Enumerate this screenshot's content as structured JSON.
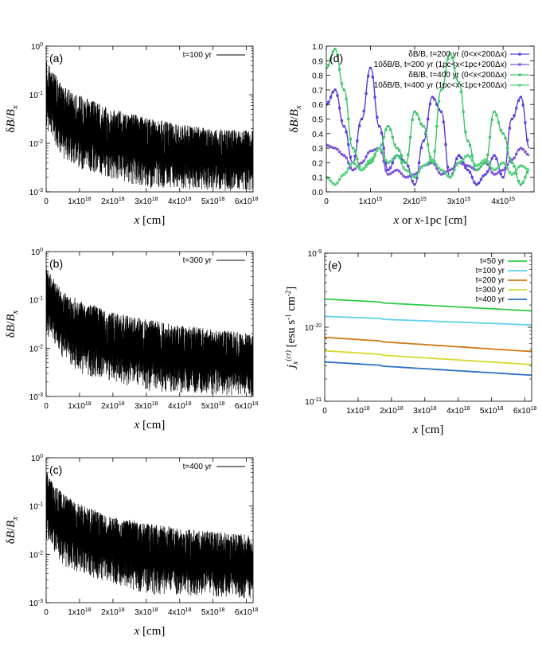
{
  "chart_data": [
    {
      "id": "a",
      "type": "line",
      "panel_label": "(a)",
      "legend": "t=100 yr",
      "ylabel": "δB/B_x",
      "xlabel": "x [cm]",
      "yscale": "log",
      "ylim": [
        0.001,
        1
      ],
      "xlim": [
        0,
        6.2e+18
      ],
      "yticks": [
        "10^-3",
        "10^-2",
        "10^-1",
        "10^0"
      ],
      "xticks": [
        "0",
        "1x10^18",
        "2x10^18",
        "3x10^18",
        "4x10^18",
        "5x10^18",
        "6x10^18"
      ],
      "upper_envelope": [
        [
          0,
          0.55
        ],
        [
          1e+17,
          0.4
        ],
        [
          5e+17,
          0.15
        ],
        [
          1e+18,
          0.1
        ],
        [
          2e+18,
          0.05
        ],
        [
          3e+18,
          0.035
        ],
        [
          4e+18,
          0.025
        ],
        [
          5e+18,
          0.02
        ],
        [
          6.2e+18,
          0.018
        ]
      ],
      "lower_envelope": [
        [
          0,
          0.02
        ],
        [
          5e+17,
          0.005
        ],
        [
          1e+18,
          0.003
        ],
        [
          2e+18,
          0.0018
        ],
        [
          3e+18,
          0.0012
        ],
        [
          6.2e+18,
          0.001
        ]
      ],
      "color": "#000000"
    },
    {
      "id": "b",
      "type": "line",
      "panel_label": "(b)",
      "legend": "t=300 yr",
      "ylabel": "δB/B_x",
      "xlabel": "x [cm]",
      "yscale": "log",
      "ylim": [
        0.001,
        1
      ],
      "xlim": [
        0,
        6.2e+18
      ],
      "yticks": [
        "10^-3",
        "10^-2",
        "10^-1",
        "10^0"
      ],
      "xticks": [
        "0",
        "1x10^18",
        "2x10^18",
        "3x10^18",
        "4x10^18",
        "5x10^18",
        "6x10^18"
      ],
      "upper_envelope": [
        [
          0,
          0.6
        ],
        [
          1e+17,
          0.4
        ],
        [
          5e+17,
          0.15
        ],
        [
          1e+18,
          0.1
        ],
        [
          2e+18,
          0.055
        ],
        [
          3e+18,
          0.04
        ],
        [
          4e+18,
          0.03
        ],
        [
          5e+18,
          0.025
        ],
        [
          6.2e+18,
          0.02
        ]
      ],
      "lower_envelope": [
        [
          0,
          0.02
        ],
        [
          5e+17,
          0.006
        ],
        [
          1e+18,
          0.003
        ],
        [
          2e+18,
          0.002
        ],
        [
          3e+18,
          0.0013
        ],
        [
          6.2e+18,
          0.001
        ]
      ],
      "color": "#000000"
    },
    {
      "id": "c",
      "type": "line",
      "panel_label": "(c)",
      "legend": "t=400 yr",
      "ylabel": "δB/B_x",
      "xlabel": "x [cm]",
      "yscale": "log",
      "ylim": [
        0.001,
        1
      ],
      "xlim": [
        0,
        6.2e+18
      ],
      "yticks": [
        "10^-3",
        "10^-2",
        "10^-1",
        "10^0"
      ],
      "xticks": [
        "0",
        "1x10^18",
        "2x10^18",
        "3x10^18",
        "4x10^18",
        "5x10^18",
        "6x10^18"
      ],
      "upper_envelope": [
        [
          0,
          0.55
        ],
        [
          1e+17,
          0.4
        ],
        [
          5e+17,
          0.18
        ],
        [
          1e+18,
          0.11
        ],
        [
          2e+18,
          0.06
        ],
        [
          3e+18,
          0.045
        ],
        [
          4e+18,
          0.035
        ],
        [
          5e+18,
          0.03
        ],
        [
          6.2e+18,
          0.025
        ]
      ],
      "lower_envelope": [
        [
          0,
          0.02
        ],
        [
          5e+17,
          0.006
        ],
        [
          1e+18,
          0.004
        ],
        [
          2e+18,
          0.0025
        ],
        [
          3e+18,
          0.0015
        ],
        [
          6.2e+18,
          0.0012
        ]
      ],
      "color": "#000000"
    },
    {
      "id": "d",
      "type": "line",
      "panel_label": "(d)",
      "ylabel": "δB/B_x",
      "xlabel": "x or x-1pc [cm]",
      "yscale": "linear",
      "ylim": [
        0,
        1.0
      ],
      "xlim": [
        0,
        4700000000000000.0
      ],
      "yticks": [
        "0.0",
        "0.1",
        "0.2",
        "0.3",
        "0.4",
        "0.5",
        "0.6",
        "0.7",
        "0.8",
        "0.9",
        "1.0"
      ],
      "xticks": [
        "0",
        "1x10^15",
        "2x10^15",
        "3x10^15",
        "4x10^15"
      ],
      "series": [
        {
          "name": "δB/B, t=200 yr (0<x<200Δx)",
          "color": "#5a3fd8",
          "marker": "square",
          "x": [
            0,
            0.2,
            0.4,
            0.6,
            0.8,
            1.0,
            1.2,
            1.4,
            1.6,
            1.8,
            2.0,
            2.2,
            2.4,
            2.6,
            2.8,
            3.0,
            3.2,
            3.4,
            3.6,
            3.8,
            4.0,
            4.2,
            4.4,
            4.6
          ],
          "y": [
            0.6,
            0.7,
            0.45,
            0.2,
            0.5,
            0.85,
            0.45,
            0.15,
            0.25,
            0.2,
            0.05,
            0.35,
            0.65,
            0.55,
            0.1,
            0.25,
            0.15,
            0.05,
            0.12,
            0.25,
            0.1,
            0.5,
            0.65,
            0.3
          ]
        },
        {
          "name": "10δB/B, t=200 yr (1pc<x<1pc+200Δx)",
          "color": "#7b52d9",
          "marker": "square",
          "x": [
            0,
            0.2,
            0.4,
            0.6,
            0.8,
            1.0,
            1.2,
            1.4,
            1.6,
            1.8,
            2.0,
            2.2,
            2.4,
            2.6,
            2.8,
            3.0,
            3.2,
            3.4,
            3.6,
            3.8,
            4.0,
            4.2,
            4.4,
            4.6
          ],
          "y": [
            0.32,
            0.3,
            0.25,
            0.15,
            0.2,
            0.28,
            0.3,
            0.12,
            0.15,
            0.1,
            0.12,
            0.18,
            0.2,
            0.12,
            0.15,
            0.2,
            0.18,
            0.15,
            0.2,
            0.12,
            0.15,
            0.22,
            0.3,
            0.25
          ]
        },
        {
          "name": "δB/B, t=400 yr (0<x<200Δx)",
          "color": "#3ec46a",
          "marker": "square",
          "x": [
            0,
            0.2,
            0.4,
            0.6,
            0.8,
            1.0,
            1.2,
            1.4,
            1.6,
            1.8,
            2.0,
            2.2,
            2.4,
            2.6,
            2.8,
            3.0,
            3.2,
            3.4,
            3.6,
            3.8,
            4.0,
            4.2,
            4.4,
            4.6
          ],
          "y": [
            0.85,
            0.98,
            0.7,
            0.3,
            0.15,
            0.2,
            0.3,
            0.45,
            0.3,
            0.2,
            0.55,
            0.45,
            0.2,
            0.7,
            0.95,
            0.75,
            0.35,
            0.15,
            0.2,
            0.55,
            0.4,
            0.2,
            0.05,
            0.15
          ]
        },
        {
          "name": "10δB/B, t=400 yr (1pc<x<1pc+200Δx)",
          "color": "#4fd17a",
          "marker": "square",
          "x": [
            0,
            0.2,
            0.4,
            0.6,
            0.8,
            1.0,
            1.2,
            1.4,
            1.6,
            1.8,
            2.0,
            2.2,
            2.4,
            2.6,
            2.8,
            3.0,
            3.2,
            3.4,
            3.6,
            3.8,
            4.0,
            4.2,
            4.4,
            4.6
          ],
          "y": [
            0.1,
            0.05,
            0.12,
            0.2,
            0.15,
            0.22,
            0.3,
            0.2,
            0.25,
            0.15,
            0.1,
            0.18,
            0.22,
            0.15,
            0.1,
            0.2,
            0.25,
            0.18,
            0.22,
            0.15,
            0.2,
            0.12,
            0.18,
            0.15
          ]
        }
      ]
    },
    {
      "id": "e",
      "type": "line",
      "panel_label": "(e)",
      "ylabel": "j_x^(cr) [esu s^-1 cm^-2]",
      "xlabel": "x [cm]",
      "yscale": "log",
      "ylim": [
        1e-11,
        1e-09
      ],
      "xlim": [
        0,
        6.2e+18
      ],
      "yticks": [
        "10^-11",
        "10^-10",
        "10^-9"
      ],
      "xticks": [
        "0",
        "1x10^18",
        "2x10^18",
        "3x10^18",
        "4x10^18",
        "5x10^18",
        "6x10^18"
      ],
      "series": [
        {
          "name": "t=50 yr",
          "color": "#2ec943",
          "x": [
            0,
            6.2e+18
          ],
          "y": [
            2.4e-10,
            1.7e-10
          ]
        },
        {
          "name": "t=100 yr",
          "color": "#5fd0f0",
          "x": [
            0,
            6.2e+18
          ],
          "y": [
            1.4e-10,
            1.1e-10
          ]
        },
        {
          "name": "t=200 yr",
          "color": "#d17816",
          "x": [
            0,
            6.2e+18
          ],
          "y": [
            7.3e-11,
            4.8e-11
          ]
        },
        {
          "name": "t=300 yr",
          "color": "#d8d830",
          "x": [
            0,
            6.2e+18
          ],
          "y": [
            4.8e-11,
            3.2e-11
          ]
        },
        {
          "name": "t=400 yr",
          "color": "#2a6fc0",
          "x": [
            0,
            6.2e+18
          ],
          "y": [
            3.4e-11,
            2.3e-11
          ]
        }
      ]
    }
  ]
}
